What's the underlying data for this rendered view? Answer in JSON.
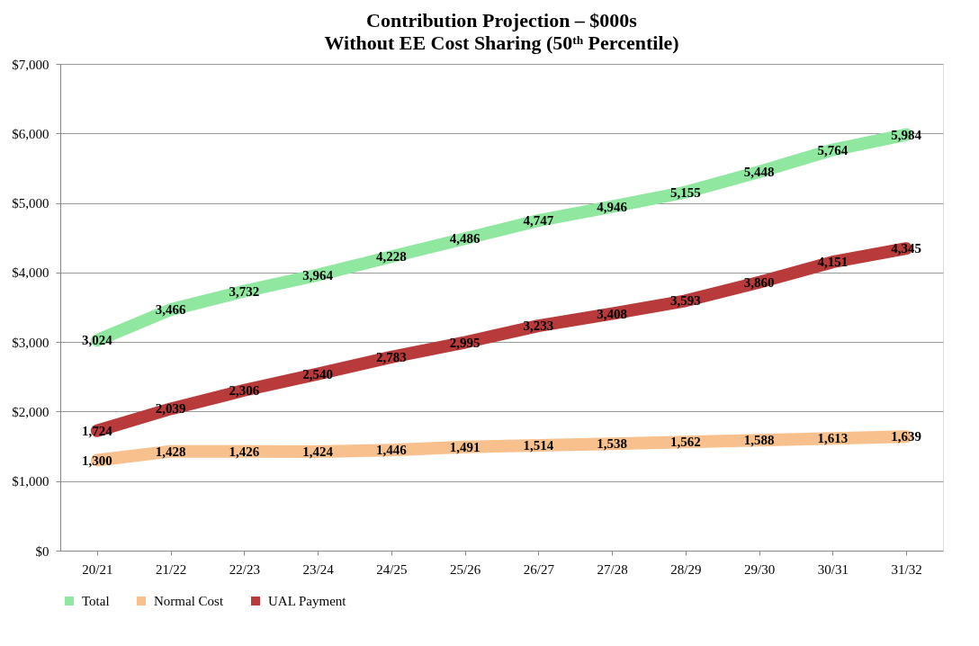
{
  "chart_data": {
    "type": "line",
    "title": "Contribution Projection – $000s",
    "subtitle": "Without EE Cost Sharing (50ᵗʰ Percentile)",
    "categories": [
      "20/21",
      "21/22",
      "22/23",
      "23/24",
      "24/25",
      "25/26",
      "26/27",
      "27/28",
      "28/29",
      "29/30",
      "30/31",
      "31/32"
    ],
    "series": [
      {
        "name": "Total",
        "color": "#90e8a0",
        "values": [
          3024,
          3466,
          3732,
          3964,
          4228,
          4486,
          4747,
          4946,
          5155,
          5448,
          5764,
          5984
        ],
        "value_labels": [
          "3,024",
          "3,466",
          "3,732",
          "3,964",
          "4,228",
          "4,486",
          "4,747",
          "4,946",
          "5,155",
          "5,448",
          "5,764",
          "5,984"
        ]
      },
      {
        "name": "Normal Cost",
        "color": "#f7c08c",
        "values": [
          1300,
          1428,
          1426,
          1424,
          1446,
          1491,
          1514,
          1538,
          1562,
          1588,
          1613,
          1639
        ],
        "value_labels": [
          "1,300",
          "1,428",
          "1,426",
          "1,424",
          "1,446",
          "1,491",
          "1,514",
          "1,538",
          "1,562",
          "1,588",
          "1,613",
          "1,639"
        ]
      },
      {
        "name": "UAL Payment",
        "color": "#b83a3a",
        "values": [
          1724,
          2039,
          2306,
          2540,
          2783,
          2995,
          3233,
          3408,
          3593,
          3860,
          4151,
          4345
        ],
        "value_labels": [
          "1,724",
          "2,039",
          "2,306",
          "2,540",
          "2,783",
          "2,995",
          "3,233",
          "3,408",
          "3,593",
          "3,860",
          "4,151",
          "4,345"
        ]
      }
    ],
    "ylim": [
      0,
      7000
    ],
    "yticks": [
      {
        "value": 0,
        "label": "$0"
      },
      {
        "value": 1000,
        "label": "$1,000"
      },
      {
        "value": 2000,
        "label": "$2,000"
      },
      {
        "value": 3000,
        "label": "$3,000"
      },
      {
        "value": 4000,
        "label": "$4,000"
      },
      {
        "value": 5000,
        "label": "$5,000"
      },
      {
        "value": 6000,
        "label": "$6,000"
      },
      {
        "value": 7000,
        "label": "$7,000"
      }
    ],
    "grid": "y",
    "legend": "bottom",
    "line_style": "solid"
  }
}
